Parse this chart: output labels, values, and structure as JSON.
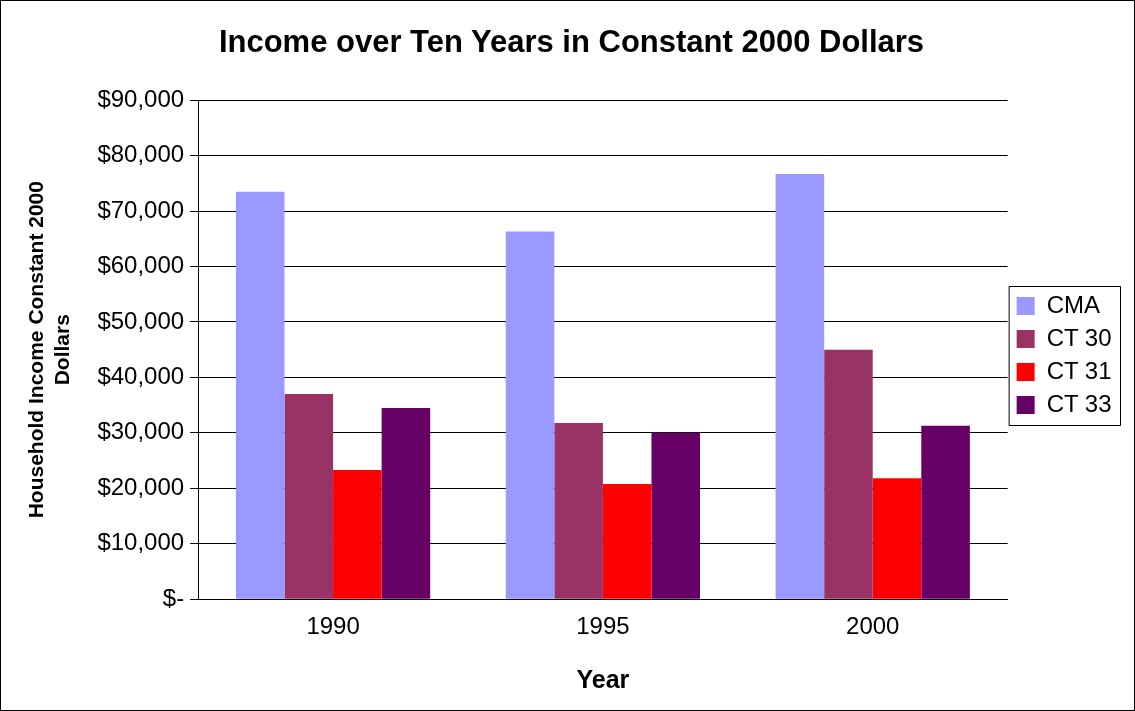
{
  "chart_data": {
    "type": "bar",
    "title": "Income over Ten Years in Constant 2000 Dollars",
    "xlabel": "Year",
    "ylabel": "Household Income Constant 2000 Dollars",
    "categories": [
      "1990",
      "1995",
      "2000"
    ],
    "series": [
      {
        "name": "CMA",
        "color": "#9999ff",
        "values": [
          73500,
          66300,
          76700
        ]
      },
      {
        "name": "CT 30",
        "color": "#993366",
        "values": [
          37000,
          31800,
          45000
        ]
      },
      {
        "name": "CT 31",
        "color": "#ff0000",
        "values": [
          23300,
          20800,
          21800
        ]
      },
      {
        "name": "CT 33",
        "color": "#660066",
        "values": [
          34500,
          30000,
          31300
        ]
      }
    ],
    "ylim": [
      0,
      90000
    ],
    "yticks": [
      {
        "value": 0,
        "label": "$-"
      },
      {
        "value": 10000,
        "label": "$10,000"
      },
      {
        "value": 20000,
        "label": "$20,000"
      },
      {
        "value": 30000,
        "label": "$30,000"
      },
      {
        "value": 40000,
        "label": "$40,000"
      },
      {
        "value": 50000,
        "label": "$50,000"
      },
      {
        "value": 60000,
        "label": "$60,000"
      },
      {
        "value": 70000,
        "label": "$70,000"
      },
      {
        "value": 80000,
        "label": "$80,000"
      },
      {
        "value": 90000,
        "label": "$90,000"
      }
    ],
    "grid": "y",
    "legend": "right"
  }
}
